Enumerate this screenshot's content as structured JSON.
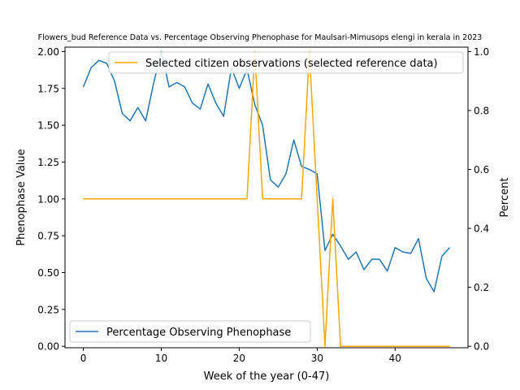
{
  "chart_data": {
    "type": "line",
    "title": "Flowers_bud Reference Data vs. Percentage Observing Phenophase for Maulsari-Mimusops elengi in kerala in 2023",
    "xlabel": "Week of the year (0-47)",
    "ylabel_left": "Phenophase Value",
    "ylabel_right": "Percent",
    "xlim": [
      -2.35,
      49.35
    ],
    "ylim_left": [
      -0.01,
      2.03
    ],
    "ylim_right": [
      -0.005,
      1.015
    ],
    "xticks": [
      0,
      10,
      20,
      30,
      40
    ],
    "yticks_left": [
      "0.00",
      "0.25",
      "0.50",
      "0.75",
      "1.00",
      "1.25",
      "1.50",
      "1.75",
      "2.00"
    ],
    "yticks_right": [
      "0.0",
      "0.2",
      "0.4",
      "0.6",
      "0.8",
      "1.0"
    ],
    "grid": false,
    "series": [
      {
        "name": "Percentage Observing Phenophase",
        "axis": "left",
        "color": "#1f77b4",
        "legend_position": "lower-left",
        "x": [
          0,
          1,
          2,
          3,
          4,
          5,
          6,
          7,
          8,
          9,
          10,
          11,
          12,
          13,
          14,
          15,
          16,
          17,
          18,
          19,
          20,
          21,
          22,
          23,
          24,
          25,
          26,
          27,
          28,
          29,
          30,
          31,
          32,
          33,
          34,
          35,
          36,
          37,
          38,
          39,
          40,
          41,
          42,
          43,
          44,
          45,
          46,
          47
        ],
        "y": [
          1.76,
          1.89,
          1.94,
          1.92,
          1.8,
          1.58,
          1.53,
          1.62,
          1.53,
          1.78,
          2.0,
          1.76,
          1.79,
          1.76,
          1.65,
          1.61,
          1.78,
          1.65,
          1.56,
          1.89,
          1.75,
          1.88,
          1.64,
          1.5,
          1.13,
          1.08,
          1.17,
          1.4,
          1.22,
          1.2,
          1.17,
          0.65,
          0.76,
          0.68,
          0.59,
          0.64,
          0.52,
          0.59,
          0.59,
          0.51,
          0.67,
          0.64,
          0.63,
          0.73,
          0.46,
          0.37,
          0.61,
          0.67
        ]
      },
      {
        "name": "Selected citizen observations (selected reference data)",
        "axis": "right",
        "color": "#ffa500",
        "legend_position": "upper-right",
        "x": [
          0,
          1,
          2,
          3,
          4,
          5,
          6,
          7,
          8,
          9,
          10,
          11,
          12,
          13,
          14,
          15,
          16,
          17,
          18,
          19,
          20,
          21,
          22,
          23,
          24,
          25,
          26,
          27,
          28,
          29,
          30,
          31,
          32,
          33,
          34,
          35,
          36,
          37,
          38,
          39,
          40,
          41,
          42,
          43,
          44,
          45,
          46,
          47
        ],
        "y": [
          0.5,
          0.5,
          0.5,
          0.5,
          0.5,
          0.5,
          0.5,
          0.5,
          0.5,
          0.5,
          0.5,
          0.5,
          0.5,
          0.5,
          0.5,
          0.5,
          0.5,
          0.5,
          0.5,
          0.5,
          0.5,
          0.5,
          1.0,
          0.5,
          0.5,
          0.5,
          0.5,
          0.5,
          0.5,
          1.0,
          0.5,
          0.0,
          0.5,
          0.0,
          0.0,
          0.0,
          0.0,
          0.0,
          0.0,
          0.0,
          0.0,
          0.0,
          0.0,
          0.0,
          0.0,
          0.0,
          0.0,
          0.0
        ]
      }
    ]
  }
}
